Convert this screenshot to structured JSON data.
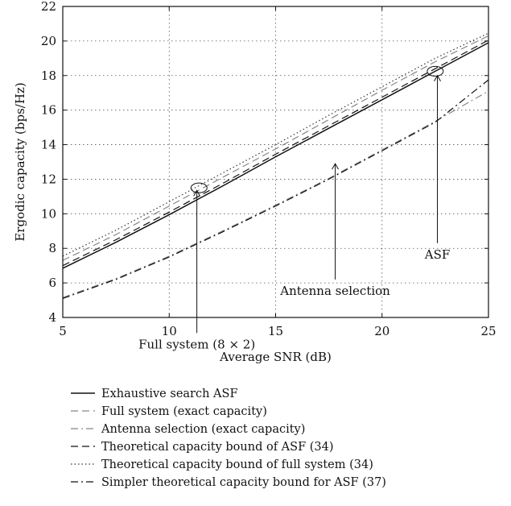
{
  "chart_data": {
    "type": "line",
    "title": "",
    "xlabel": "Average SNR (dB)",
    "ylabel": "Ergodic capacity (bps/Hz)",
    "xlim": [
      5,
      25
    ],
    "ylim": [
      4,
      22
    ],
    "xticks": [
      5,
      10,
      15,
      20,
      25
    ],
    "yticks": [
      4,
      6,
      8,
      10,
      12,
      14,
      16,
      18,
      20,
      22
    ],
    "grid": true,
    "legend_position": "below",
    "x": [
      5,
      7.5,
      10,
      12.5,
      15,
      17.5,
      20,
      22.5,
      25
    ],
    "series": [
      {
        "name": "Exhaustive search ASF",
        "style": "solid",
        "color": "#111111",
        "values": [
          6.85,
          8.35,
          9.95,
          11.6,
          13.3,
          14.95,
          16.6,
          18.25,
          19.9
        ]
      },
      {
        "name": "Full system (exact capacity)",
        "style": "dashed",
        "color": "#888888",
        "values": [
          7.3,
          8.8,
          10.45,
          12.1,
          13.75,
          15.45,
          17.15,
          18.8,
          20.3
        ]
      },
      {
        "name": "Antenna selection (exact capacity)",
        "style": "dashdot",
        "color": "#888888",
        "values": [
          5.15,
          6.25,
          7.55,
          9.0,
          10.5,
          12.05,
          13.7,
          15.35,
          17.1
        ]
      },
      {
        "name": "Theoretical capacity bound of ASF (34)",
        "style": "dashed",
        "color": "#111111",
        "values": [
          7.0,
          8.5,
          10.1,
          11.75,
          13.45,
          15.1,
          16.75,
          18.4,
          20.05
        ]
      },
      {
        "name": "Theoretical capacity bound of full system (34)",
        "style": "dotted",
        "color": "#333333",
        "values": [
          7.55,
          9.05,
          10.7,
          12.35,
          14.0,
          15.7,
          17.35,
          19.0,
          20.45
        ]
      },
      {
        "name": "Simpler theoretical capacity bound for ASF (37)",
        "style": "dashdot",
        "color": "#111111",
        "values": [
          5.1,
          6.2,
          7.5,
          8.95,
          10.45,
          12.0,
          13.65,
          15.3,
          17.75
        ]
      }
    ],
    "annotations": [
      {
        "text": "ASF",
        "label_x": 22.6,
        "label_y": 7.4,
        "arrow_x": 22.6,
        "arrow_from_y": 8.3,
        "arrow_to_y": 18.0,
        "ellipse_x": 22.5,
        "ellipse_y": 18.25
      },
      {
        "text": "Antenna selection",
        "label_x": 17.8,
        "label_y": 5.3,
        "arrow_x": 17.8,
        "arrow_from_y": 6.2,
        "arrow_to_y": 12.9
      },
      {
        "text": "Full system (8 × 2)",
        "label_x": 11.3,
        "label_y": 2.2,
        "arrow_x": 11.3,
        "arrow_from_y": 3.1,
        "arrow_to_y": 11.35,
        "ellipse_x": 11.4,
        "ellipse_y": 11.5
      }
    ]
  }
}
